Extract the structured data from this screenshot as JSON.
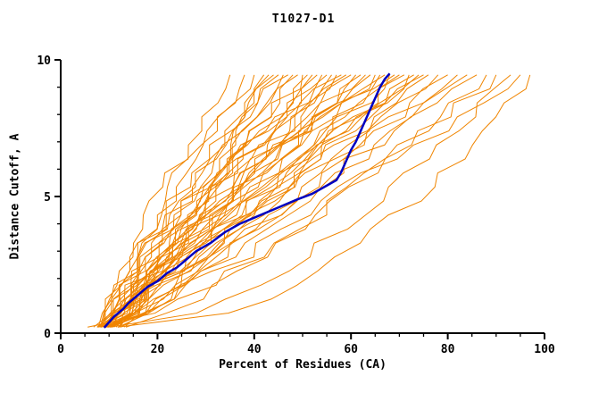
{
  "chart_data": {
    "type": "line",
    "title": "T1027-D1",
    "xlabel": "Percent of Residues (CA)",
    "ylabel": "Distance Cutoff, A",
    "xlim": [
      0,
      100
    ],
    "ylim": [
      0,
      10
    ],
    "x_ticks": [
      0,
      20,
      40,
      60,
      80,
      100
    ],
    "y_ticks": [
      0,
      5,
      10
    ],
    "x_minor_step": 5,
    "y_minor_step": 1,
    "grid": false,
    "legend": "none",
    "colors": {
      "models": "#f08500",
      "highlight": "#0000c0",
      "axis": "#000000",
      "background": "#ffffff"
    },
    "highlight_series": {
      "name": "highlighted-model",
      "points": [
        [
          9,
          0.2
        ],
        [
          10,
          0.4
        ],
        [
          11,
          0.6
        ],
        [
          13,
          0.9
        ],
        [
          14,
          1.1
        ],
        [
          16,
          1.4
        ],
        [
          18,
          1.7
        ],
        [
          20,
          1.9
        ],
        [
          22,
          2.2
        ],
        [
          24,
          2.4
        ],
        [
          26,
          2.7
        ],
        [
          28,
          3.0
        ],
        [
          31,
          3.3
        ],
        [
          34,
          3.7
        ],
        [
          37,
          4.0
        ],
        [
          41,
          4.3
        ],
        [
          45,
          4.6
        ],
        [
          49,
          4.9
        ],
        [
          52,
          5.1
        ],
        [
          55,
          5.4
        ],
        [
          57,
          5.6
        ],
        [
          58,
          5.9
        ],
        [
          59,
          6.3
        ],
        [
          60,
          6.7
        ],
        [
          61,
          7.0
        ],
        [
          62,
          7.4
        ],
        [
          63,
          7.8
        ],
        [
          64,
          8.2
        ],
        [
          65,
          8.6
        ],
        [
          66,
          9.0
        ],
        [
          67,
          9.3
        ],
        [
          68,
          9.5
        ]
      ]
    },
    "model_series": {
      "name": "model-predictions",
      "count": 48,
      "param_keys": [
        "x_at_bottom",
        "x_at_top",
        "shape_exponent",
        "jitter",
        "seed"
      ],
      "params": [
        [
          8,
          35,
          1.25,
          2,
          1
        ],
        [
          7,
          38,
          1.15,
          2,
          2
        ],
        [
          9,
          40,
          1.3,
          2.5,
          3
        ],
        [
          10,
          42,
          1.1,
          2,
          4
        ],
        [
          8,
          43,
          1.2,
          2.5,
          5
        ],
        [
          11,
          44,
          1.0,
          2,
          6
        ],
        [
          9,
          45,
          1.35,
          2.5,
          7
        ],
        [
          12,
          46,
          1.1,
          2,
          8
        ],
        [
          8,
          47,
          1.2,
          3,
          9
        ],
        [
          10,
          48,
          0.95,
          2,
          10
        ],
        [
          9,
          49,
          1.3,
          2.5,
          11
        ],
        [
          11,
          50,
          1.15,
          2,
          12
        ],
        [
          8,
          51,
          1.0,
          2.5,
          13
        ],
        [
          13,
          52,
          1.25,
          2,
          14
        ],
        [
          9,
          53,
          1.1,
          3,
          15
        ],
        [
          10,
          54,
          0.9,
          2,
          16
        ],
        [
          8,
          55,
          1.2,
          2.5,
          17
        ],
        [
          12,
          56,
          1.05,
          2,
          18
        ],
        [
          9,
          57,
          1.5,
          2.5,
          19
        ],
        [
          11,
          58,
          1.15,
          3,
          20
        ],
        [
          8,
          59,
          1.0,
          2,
          21
        ],
        [
          10,
          60,
          1.2,
          2.5,
          22
        ],
        [
          9,
          61,
          0.95,
          2,
          23
        ],
        [
          12,
          62,
          1.25,
          2.5,
          24
        ],
        [
          8,
          63,
          1.1,
          3,
          25
        ],
        [
          10,
          64,
          1.0,
          2,
          26
        ],
        [
          9,
          65,
          1.2,
          2.5,
          27
        ],
        [
          11,
          66,
          0.9,
          2,
          28
        ],
        [
          8,
          67,
          1.15,
          2.5,
          29
        ],
        [
          10,
          68,
          1.05,
          3,
          30
        ],
        [
          9,
          69,
          1.55,
          2,
          31
        ],
        [
          12,
          70,
          1.0,
          2.5,
          32
        ],
        [
          8,
          71,
          1.15,
          2,
          33
        ],
        [
          10,
          72,
          0.95,
          2.5,
          34
        ],
        [
          9,
          73,
          1.1,
          3,
          35
        ],
        [
          11,
          74,
          1.2,
          2,
          36
        ],
        [
          8,
          75,
          1.0,
          2.5,
          37
        ],
        [
          10,
          76,
          0.85,
          2,
          38
        ],
        [
          9,
          78,
          1.1,
          2.5,
          39
        ],
        [
          12,
          80,
          0.95,
          3,
          40
        ],
        [
          8,
          82,
          1.05,
          2.5,
          41
        ],
        [
          10,
          84,
          0.9,
          2,
          42
        ],
        [
          9,
          86,
          1.0,
          2.5,
          43
        ],
        [
          13,
          88,
          0.8,
          2,
          44
        ],
        [
          6,
          90,
          0.75,
          2.5,
          45
        ],
        [
          10,
          93,
          0.6,
          2,
          46
        ],
        [
          8,
          95,
          0.9,
          3,
          47
        ],
        [
          12,
          97,
          0.5,
          2,
          48
        ]
      ]
    }
  }
}
